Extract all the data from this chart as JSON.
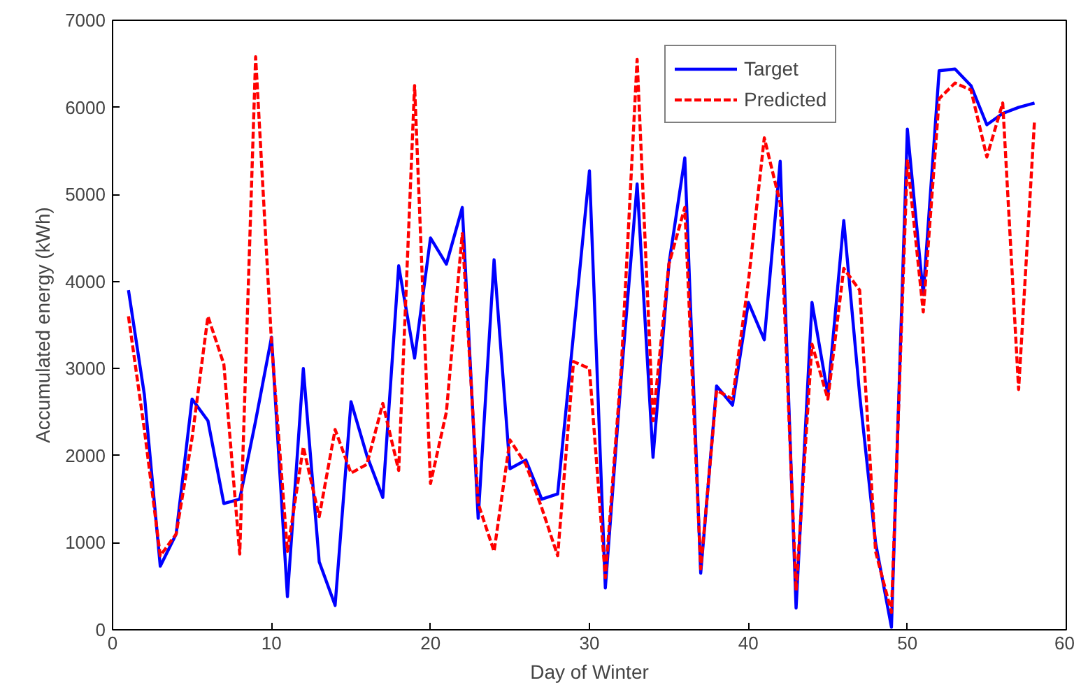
{
  "chart_data": {
    "type": "line",
    "xlabel": "Day of Winter",
    "ylabel": "Accumulated energy (kWh)",
    "x": [
      1,
      2,
      3,
      4,
      5,
      6,
      7,
      8,
      9,
      10,
      11,
      12,
      13,
      14,
      15,
      16,
      17,
      18,
      19,
      20,
      21,
      22,
      23,
      24,
      25,
      26,
      27,
      28,
      29,
      30,
      31,
      32,
      33,
      34,
      35,
      36,
      37,
      38,
      39,
      40,
      41,
      42,
      43,
      44,
      45,
      46,
      47,
      48,
      49,
      50,
      51,
      52,
      53,
      54,
      55,
      56,
      57,
      58
    ],
    "series": [
      {
        "name": "Target",
        "color": "#0000ff",
        "line_style": "solid",
        "values": [
          3900,
          2700,
          730,
          1100,
          2650,
          2400,
          1450,
          1500,
          2400,
          3360,
          380,
          3000,
          780,
          280,
          2620,
          2000,
          1520,
          4180,
          3120,
          4500,
          4200,
          4850,
          1280,
          4250,
          1850,
          1950,
          1500,
          1560,
          3400,
          5270,
          480,
          2900,
          5120,
          1980,
          4200,
          5420,
          650,
          2800,
          2580,
          3760,
          3330,
          5380,
          250,
          3760,
          2700,
          4700,
          2700,
          1000,
          30,
          5750,
          3850,
          6420,
          6440,
          6250,
          5800,
          5930,
          6000,
          6050
        ]
      },
      {
        "name": "Predicted",
        "color": "#ff0000",
        "line_style": "dashed",
        "values": [
          3600,
          2300,
          850,
          1100,
          2200,
          3600,
          3050,
          870,
          6580,
          3300,
          900,
          2100,
          1300,
          2300,
          1800,
          1900,
          2600,
          1830,
          6250,
          1680,
          2500,
          4550,
          1450,
          900,
          2180,
          1900,
          1400,
          850,
          3080,
          3000,
          600,
          3000,
          6550,
          2400,
          4200,
          4850,
          700,
          2750,
          2650,
          4000,
          5650,
          4900,
          450,
          3280,
          2650,
          4150,
          3900,
          900,
          200,
          5400,
          3650,
          6100,
          6280,
          6200,
          5430,
          6050,
          2760,
          5850
        ]
      }
    ],
    "xlim": [
      0,
      60
    ],
    "xticks": [
      0,
      10,
      20,
      30,
      40,
      50,
      60
    ],
    "ylim": [
      0,
      7000
    ],
    "yticks": [
      0,
      1000,
      2000,
      3000,
      4000,
      5000,
      6000,
      7000
    ],
    "grid": false,
    "legend": "top right",
    "marker": "none"
  }
}
